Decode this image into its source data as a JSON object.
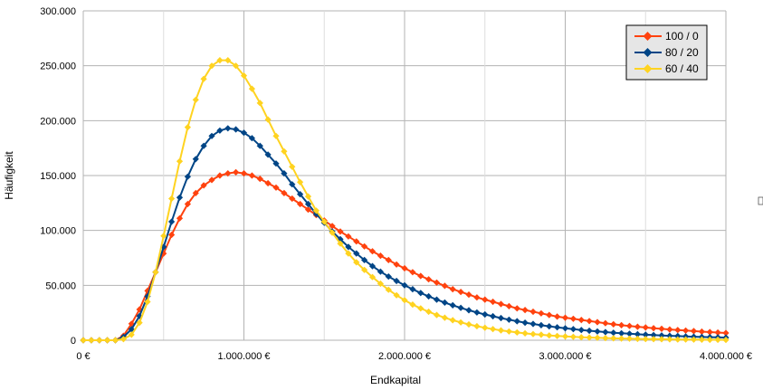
{
  "chart_data": {
    "type": "line",
    "title": "",
    "xlabel": "Endkapital",
    "ylabel": "Häufigkeit",
    "xlim": [
      0,
      4000000
    ],
    "ylim": [
      0,
      300000
    ],
    "x_ticks": [
      0,
      1000000,
      2000000,
      3000000,
      4000000
    ],
    "x_tick_labels": [
      "0 €",
      "1.000.000 €",
      "2.000.000 €",
      "3.000.000 €",
      "4.000.000 €"
    ],
    "y_ticks": [
      0,
      50000,
      100000,
      150000,
      200000,
      250000,
      300000
    ],
    "y_tick_labels": [
      "0",
      "50.000",
      "100.000",
      "150.000",
      "200.000",
      "250.000",
      "300.000"
    ],
    "grid": true,
    "legend_position": "top-right",
    "x": [
      0,
      50000,
      100000,
      150000,
      200000,
      250000,
      300000,
      350000,
      400000,
      450000,
      500000,
      550000,
      600000,
      650000,
      700000,
      750000,
      800000,
      850000,
      900000,
      950000,
      1000000,
      1050000,
      1100000,
      1150000,
      1200000,
      1250000,
      1300000,
      1350000,
      1400000,
      1450000,
      1500000,
      1550000,
      1600000,
      1650000,
      1700000,
      1750000,
      1800000,
      1850000,
      1900000,
      1950000,
      2000000,
      2050000,
      2100000,
      2150000,
      2200000,
      2250000,
      2300000,
      2350000,
      2400000,
      2450000,
      2500000,
      2550000,
      2600000,
      2650000,
      2700000,
      2750000,
      2800000,
      2850000,
      2900000,
      2950000,
      3000000,
      3050000,
      3100000,
      3150000,
      3200000,
      3250000,
      3300000,
      3350000,
      3400000,
      3450000,
      3500000,
      3550000,
      3600000,
      3650000,
      3700000,
      3750000,
      3800000,
      3850000,
      3900000,
      3950000,
      4000000
    ],
    "series": [
      {
        "name": "100 / 0",
        "color": "#ff420e",
        "values": [
          0,
          0,
          0,
          0,
          0,
          4000,
          15000,
          28000,
          45000,
          62000,
          79000,
          96000,
          111000,
          124000,
          134000,
          141000,
          146000,
          150000,
          152000,
          153000,
          152000,
          150000,
          147000,
          143000,
          139000,
          134000,
          129000,
          124000,
          119000,
          114000,
          109000,
          104000,
          99000,
          94500,
          90000,
          85500,
          81000,
          77000,
          73000,
          69000,
          65500,
          62000,
          58500,
          55500,
          52500,
          49500,
          46500,
          44000,
          41500,
          39000,
          37000,
          35000,
          33000,
          31000,
          29000,
          27500,
          26000,
          24500,
          23000,
          21500,
          20500,
          19500,
          18500,
          17500,
          16500,
          15500,
          14500,
          13700,
          13000,
          12300,
          11600,
          11000,
          10400,
          9800,
          9300,
          8800,
          8300,
          7800,
          7400,
          7000,
          6600
        ]
      },
      {
        "name": "80 / 20",
        "color": "#004586",
        "values": [
          0,
          0,
          0,
          0,
          0,
          3000,
          10000,
          22000,
          40000,
          62000,
          85000,
          108000,
          130000,
          149000,
          165000,
          177000,
          186000,
          191000,
          193000,
          192000,
          189000,
          184000,
          177000,
          169000,
          161000,
          152000,
          142000,
          133000,
          124000,
          115000,
          107000,
          99000,
          92000,
          85000,
          79000,
          73000,
          67500,
          62500,
          58000,
          54000,
          50000,
          46500,
          43000,
          40000,
          37000,
          34300,
          31800,
          29500,
          27300,
          25300,
          23500,
          21800,
          20200,
          18700,
          17300,
          16000,
          14800,
          13700,
          12700,
          11800,
          10900,
          10100,
          9350,
          8650,
          8000,
          7400,
          6850,
          6350,
          5900,
          5450,
          5050,
          4700,
          4350,
          4050,
          3750,
          3500,
          3250,
          3000,
          2800,
          2600,
          2400
        ]
      },
      {
        "name": "60 / 40",
        "color": "#ffd320",
        "values": [
          0,
          0,
          0,
          0,
          0,
          1000,
          5000,
          16000,
          35000,
          62000,
          95000,
          129000,
          163000,
          194000,
          219000,
          238000,
          250000,
          255000,
          255000,
          250000,
          241000,
          229000,
          216000,
          201000,
          186000,
          172000,
          158000,
          144000,
          131000,
          118000,
          108000,
          98000,
          88000,
          79000,
          71000,
          64000,
          57500,
          51500,
          46000,
          41000,
          36500,
          32500,
          29000,
          26000,
          23000,
          20500,
          18200,
          16200,
          14400,
          12800,
          11400,
          10100,
          9000,
          8000,
          7100,
          6300,
          5600,
          5000,
          4400,
          3900,
          3500,
          3100,
          2750,
          2450,
          2200,
          1950,
          1750,
          1550,
          1400,
          1250,
          1100,
          1000,
          900,
          800,
          700,
          620,
          550,
          490,
          440,
          390,
          350
        ]
      }
    ]
  }
}
